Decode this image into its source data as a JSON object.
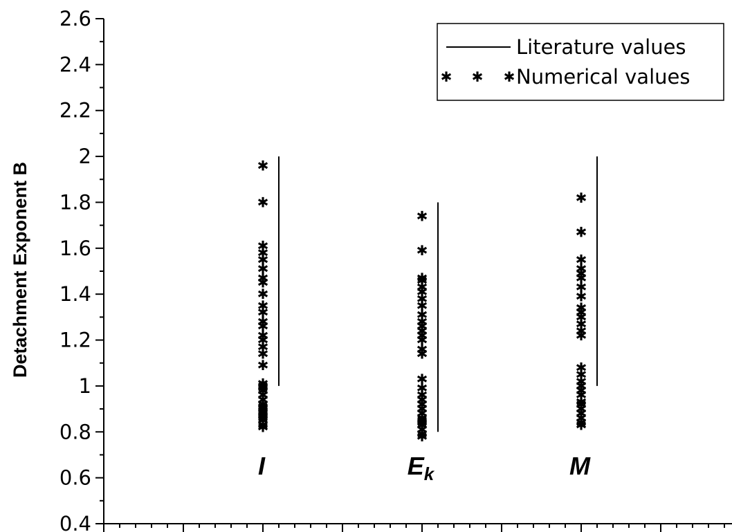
{
  "chart_data": {
    "type": "scatter",
    "title": "",
    "xlabel": "",
    "ylabel": "Detachment Exponent B",
    "ylim": [
      0.4,
      2.6
    ],
    "yticks": [
      "0.4",
      "0.6",
      "0.8",
      "1",
      "1.2",
      "1.4",
      "1.6",
      "1.8",
      "2",
      "2.2",
      "2.4",
      "2.6"
    ],
    "xlim": [
      0,
      4
    ],
    "grid": false,
    "legend_position": "top-right",
    "marker_glyph": "✱",
    "categories": [
      {
        "label": "I",
        "sub": "",
        "x": 1
      },
      {
        "label": "E",
        "sub": "k",
        "x": 2
      },
      {
        "label": "M",
        "sub": "",
        "x": 3
      }
    ],
    "series": [
      {
        "name": "Literature values",
        "kind": "range",
        "ranges": [
          {
            "category": "I",
            "min": 1.0,
            "max": 2.0
          },
          {
            "category": "E",
            "min": 0.8,
            "max": 1.8
          },
          {
            "category": "M",
            "min": 1.0,
            "max": 2.0
          }
        ]
      },
      {
        "name": "Numerical values",
        "kind": "points",
        "points": [
          {
            "category": "I",
            "values": [
              0.82,
              0.83,
              0.85,
              0.86,
              0.87,
              0.88,
              0.89,
              0.9,
              0.91,
              0.92,
              0.94,
              0.96,
              0.98,
              0.99,
              1.0,
              1.01,
              1.09,
              1.14,
              1.17,
              1.2,
              1.22,
              1.26,
              1.28,
              1.32,
              1.35,
              1.4,
              1.45,
              1.47,
              1.51,
              1.55,
              1.58,
              1.61,
              1.8,
              1.96
            ]
          },
          {
            "category": "E",
            "values": [
              0.78,
              0.79,
              0.81,
              0.83,
              0.84,
              0.85,
              0.86,
              0.88,
              0.9,
              0.92,
              0.94,
              0.96,
              0.99,
              1.03,
              1.14,
              1.16,
              1.2,
              1.22,
              1.24,
              1.26,
              1.28,
              1.31,
              1.35,
              1.38,
              1.41,
              1.43,
              1.46,
              1.47,
              1.59,
              1.74
            ]
          },
          {
            "category": "M",
            "values": [
              0.83,
              0.84,
              0.86,
              0.88,
              0.9,
              0.92,
              0.93,
              0.96,
              0.98,
              1.0,
              1.02,
              1.05,
              1.08,
              1.22,
              1.24,
              1.27,
              1.3,
              1.32,
              1.34,
              1.39,
              1.43,
              1.47,
              1.49,
              1.51,
              1.55,
              1.67,
              1.82
            ]
          }
        ]
      }
    ]
  }
}
